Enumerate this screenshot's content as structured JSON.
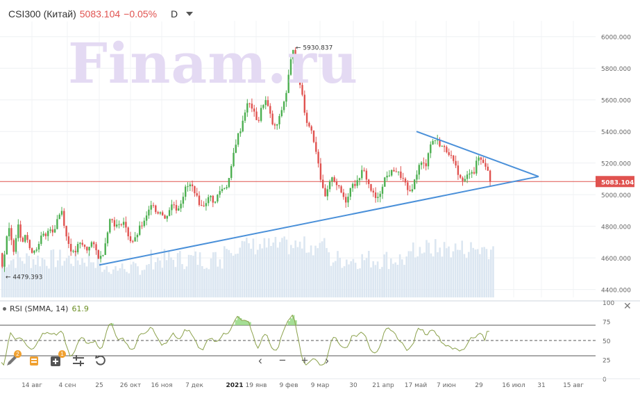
{
  "header": {
    "symbol": "CSI300 (Китай)",
    "price": "5083.104",
    "change": "−0.05%",
    "timeframe": "D"
  },
  "watermark": "Finam.ru",
  "rsi": {
    "label": "RSI (SMMA, 14)",
    "value": "61.9"
  },
  "icons": [
    "pencil-icon",
    "layers-icon",
    "add-indicator-icon",
    "settings-sliders-icon",
    "undo-icon",
    "chevron-left-icon",
    "minus-icon",
    "plus-icon",
    "chevron-right-icon",
    "close-icon"
  ],
  "tool_badges": {
    "pencil": "2",
    "add": "1"
  },
  "colors": {
    "up": "#4caf50",
    "down": "#e0524f",
    "trend": "#4a90d9",
    "price_line": "#e0524f",
    "volume": "#dbe6f1",
    "rsi": "#8aa04a"
  },
  "chart_data": {
    "type": "candlestick",
    "symbol": "CSI300",
    "interval": "D",
    "y_range": [
      4350,
      6100
    ],
    "y_ticks": [
      "6000.000",
      "5800.000",
      "5600.000",
      "5400.000",
      "5200.000",
      "5000.000",
      "4800.000",
      "4600.000",
      "4400.000"
    ],
    "x_ticks": [
      "14 авг",
      "4 сен",
      "25",
      "26 окт",
      "16 ноя",
      "7 дек",
      "2021",
      "19 янв",
      "9 фев",
      "9 мар",
      "30",
      "21 апр",
      "17 май",
      "7 июн",
      "29",
      "16 июл",
      "31",
      "15 авг"
    ],
    "current_price": "5083.104",
    "annotations": {
      "high": "5930.837",
      "low": "4479.393"
    },
    "price_path": [
      [
        0,
        4630
      ],
      [
        3,
        4520
      ],
      [
        7,
        4700
      ],
      [
        12,
        4780
      ],
      [
        18,
        4640
      ],
      [
        25,
        4820
      ],
      [
        30,
        4700
      ],
      [
        36,
        4760
      ],
      [
        42,
        4640
      ],
      [
        48,
        4650
      ],
      [
        55,
        4680
      ],
      [
        60,
        4760
      ],
      [
        64,
        4720
      ],
      [
        70,
        4800
      ],
      [
        76,
        4760
      ],
      [
        82,
        4860
      ],
      [
        88,
        4900
      ],
      [
        94,
        4740
      ],
      [
        100,
        4660
      ],
      [
        106,
        4620
      ],
      [
        112,
        4690
      ],
      [
        118,
        4680
      ],
      [
        124,
        4650
      ],
      [
        130,
        4700
      ],
      [
        136,
        4660
      ],
      [
        142,
        4590
      ],
      [
        148,
        4640
      ],
      [
        154,
        4780
      ],
      [
        158,
        4860
      ],
      [
        164,
        4810
      ],
      [
        170,
        4800
      ],
      [
        176,
        4840
      ],
      [
        182,
        4760
      ],
      [
        188,
        4700
      ],
      [
        194,
        4720
      ],
      [
        200,
        4790
      ],
      [
        206,
        4820
      ],
      [
        212,
        4880
      ],
      [
        218,
        4970
      ],
      [
        224,
        4880
      ],
      [
        230,
        4900
      ],
      [
        236,
        4840
      ],
      [
        242,
        4900
      ],
      [
        248,
        4950
      ],
      [
        254,
        4900
      ],
      [
        260,
        4960
      ],
      [
        266,
        5040
      ],
      [
        272,
        5060
      ],
      [
        278,
        5040
      ],
      [
        284,
        4960
      ],
      [
        290,
        4920
      ],
      [
        296,
        4960
      ],
      [
        302,
        4990
      ],
      [
        308,
        4940
      ],
      [
        314,
        5020
      ],
      [
        320,
        5040
      ],
      [
        326,
        5060
      ],
      [
        331,
        5140
      ],
      [
        336,
        5280
      ],
      [
        341,
        5370
      ],
      [
        346,
        5420
      ],
      [
        351,
        5520
      ],
      [
        356,
        5580
      ],
      [
        361,
        5560
      ],
      [
        366,
        5500
      ],
      [
        371,
        5460
      ],
      [
        376,
        5560
      ],
      [
        381,
        5600
      ],
      [
        386,
        5540
      ],
      [
        391,
        5450
      ],
      [
        396,
        5420
      ],
      [
        401,
        5480
      ],
      [
        406,
        5560
      ],
      [
        411,
        5640
      ],
      [
        416,
        5800
      ],
      [
        421,
        5930
      ],
      [
        425,
        5820
      ],
      [
        430,
        5720
      ],
      [
        434,
        5640
      ],
      [
        438,
        5520
      ],
      [
        442,
        5440
      ],
      [
        447,
        5420
      ],
      [
        452,
        5320
      ],
      [
        457,
        5220
      ],
      [
        462,
        5060
      ],
      [
        467,
        4980
      ],
      [
        472,
        5040
      ],
      [
        477,
        5120
      ],
      [
        482,
        5080
      ],
      [
        487,
        5040
      ],
      [
        492,
        5000
      ],
      [
        497,
        4960
      ],
      [
        502,
        5020
      ],
      [
        507,
        5080
      ],
      [
        512,
        5060
      ],
      [
        517,
        5120
      ],
      [
        522,
        5160
      ],
      [
        527,
        5100
      ],
      [
        532,
        5040
      ],
      [
        537,
        5000
      ],
      [
        542,
        4960
      ],
      [
        547,
        5020
      ],
      [
        552,
        5100
      ],
      [
        557,
        5120
      ],
      [
        562,
        5140
      ],
      [
        567,
        5160
      ],
      [
        572,
        5140
      ],
      [
        577,
        5110
      ],
      [
        582,
        5080
      ],
      [
        587,
        5000
      ],
      [
        592,
        5040
      ],
      [
        597,
        5100
      ],
      [
        602,
        5180
      ],
      [
        607,
        5200
      ],
      [
        612,
        5180
      ],
      [
        617,
        5300
      ],
      [
        622,
        5340
      ],
      [
        627,
        5350
      ],
      [
        632,
        5320
      ],
      [
        637,
        5300
      ],
      [
        642,
        5280
      ],
      [
        647,
        5260
      ],
      [
        652,
        5200
      ],
      [
        657,
        5160
      ],
      [
        662,
        5100
      ],
      [
        667,
        5080
      ],
      [
        672,
        5120
      ],
      [
        677,
        5160
      ],
      [
        682,
        5140
      ],
      [
        687,
        5240
      ],
      [
        692,
        5220
      ],
      [
        697,
        5200
      ],
      [
        701,
        5160
      ],
      [
        704,
        5090
      ],
      [
        708,
        5083
      ]
    ],
    "rsi_range": [
      0,
      100
    ],
    "rsi_ticks": [
      "100",
      "75",
      "50",
      "25",
      "0"
    ],
    "rsi_levels": [
      30,
      50,
      70
    ],
    "rsi_last": 61.9
  }
}
